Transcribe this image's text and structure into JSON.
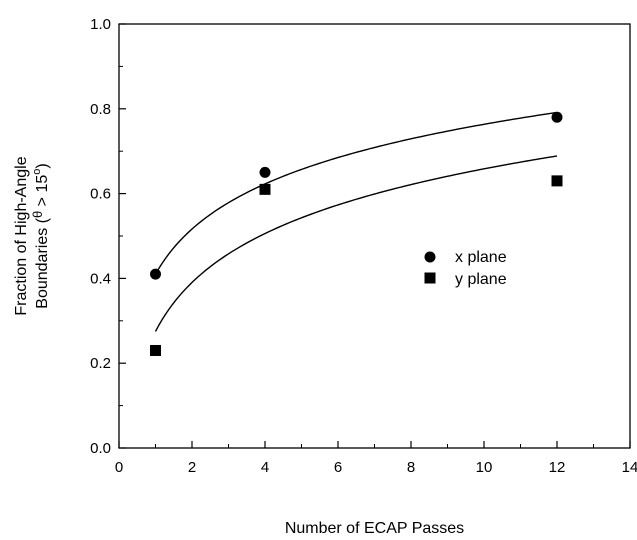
{
  "chart_data": {
    "type": "scatter",
    "xlabel": "Number of ECAP Passes",
    "ylabel_line1": "Fraction of High-Angle",
    "ylabel_line2_text": "Boundaries (",
    "ylabel_line2_theta": "θ",
    "ylabel_line2_rest": " > 15",
    "ylabel_line2_degree": "o",
    "ylabel_line2_close": ")",
    "xlim": [
      0,
      14
    ],
    "ylim": [
      0.0,
      1.0
    ],
    "x_ticks": [
      0,
      2,
      4,
      6,
      8,
      10,
      12,
      14
    ],
    "y_ticks": [
      "0.0",
      "0.2",
      "0.4",
      "0.6",
      "0.8",
      "1.0"
    ],
    "grid": false,
    "legend_position": "right-middle",
    "series": [
      {
        "name": "x plane",
        "marker": "circle",
        "x": [
          1,
          4,
          12
        ],
        "y": [
          0.41,
          0.65,
          0.78
        ],
        "fit": {
          "type": "logarithmic",
          "a": 0.41,
          "b": 0.1535
        }
      },
      {
        "name": "y plane",
        "marker": "square",
        "x": [
          1,
          4,
          12
        ],
        "y": [
          0.23,
          0.61,
          0.63
        ],
        "fit": {
          "type": "logarithmic",
          "a": 0.275,
          "b": 0.1665
        }
      }
    ]
  }
}
